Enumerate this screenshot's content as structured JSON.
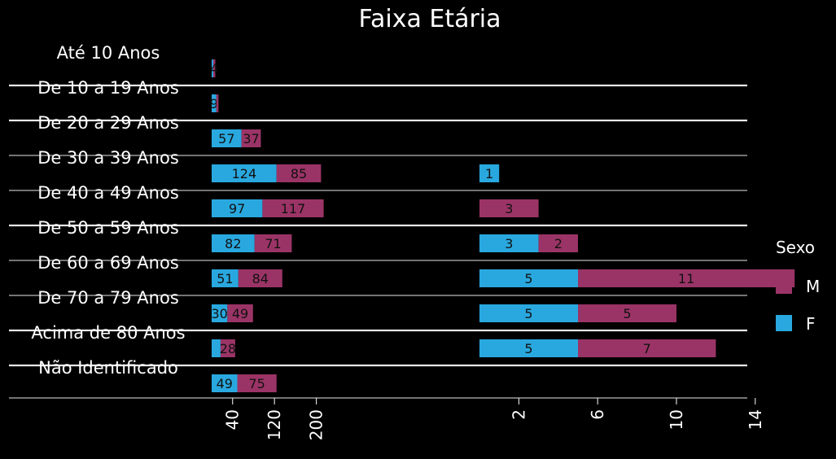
{
  "chart_data": {
    "type": "bar",
    "orientation": "horizontal",
    "stacked": true,
    "title": "Faixa Etária",
    "categories": [
      "Até 10 Anos",
      "De 10 a 19 Anos",
      "De 20 a 29 Anos",
      "De 30 a 39 Anos",
      "De 40 a 49 Anos",
      "De 50 a 59 Anos",
      "De 60 a 69 Anos",
      "De 70 a 79 Anos",
      "Acima de 80 Anos",
      "Não Identificado"
    ],
    "legend": {
      "title": "Sexo",
      "placement": "right",
      "entries": [
        "M",
        "F"
      ]
    },
    "panels": [
      {
        "xticks": [
          40,
          120,
          200
        ],
        "xlim": [
          0,
          240
        ],
        "series": [
          {
            "name": "F",
            "values": [
              3,
              9,
              57,
              124,
              97,
              82,
              51,
              30,
              17,
              49
            ],
            "labels": [
              "",
              "9",
              "57",
              "124",
              "97",
              "82",
              "51",
              "30",
              "",
              "49"
            ]
          },
          {
            "name": "M",
            "values": [
              4,
              4,
              37,
              85,
              117,
              71,
              84,
              49,
              28,
              75
            ],
            "labels": [
              "4",
              "",
              "37",
              "85",
              "117",
              "71",
              "84",
              "49",
              "28",
              "75"
            ]
          }
        ]
      },
      {
        "xticks": [
          2,
          6,
          10,
          14
        ],
        "xlim": [
          -1,
          16
        ],
        "series": [
          {
            "name": "F",
            "values": [
              0,
              0,
              0,
              1,
              0,
              3,
              5,
              5,
              5,
              0
            ],
            "labels": [
              "",
              "",
              "",
              "1",
              "",
              "3",
              "5",
              "5",
              "5",
              ""
            ]
          },
          {
            "name": "M",
            "values": [
              0,
              0,
              0,
              0,
              3,
              2,
              11,
              5,
              7,
              0
            ],
            "labels": [
              "",
              "",
              "",
              "",
              "3",
              "2",
              "11",
              "5",
              "7",
              ""
            ]
          }
        ]
      }
    ],
    "colors": {
      "F": "#29A8DF",
      "M": "#9B3466",
      "background": "#000000",
      "text": "#FFFFFF",
      "label": "#111111"
    },
    "grid": false
  }
}
